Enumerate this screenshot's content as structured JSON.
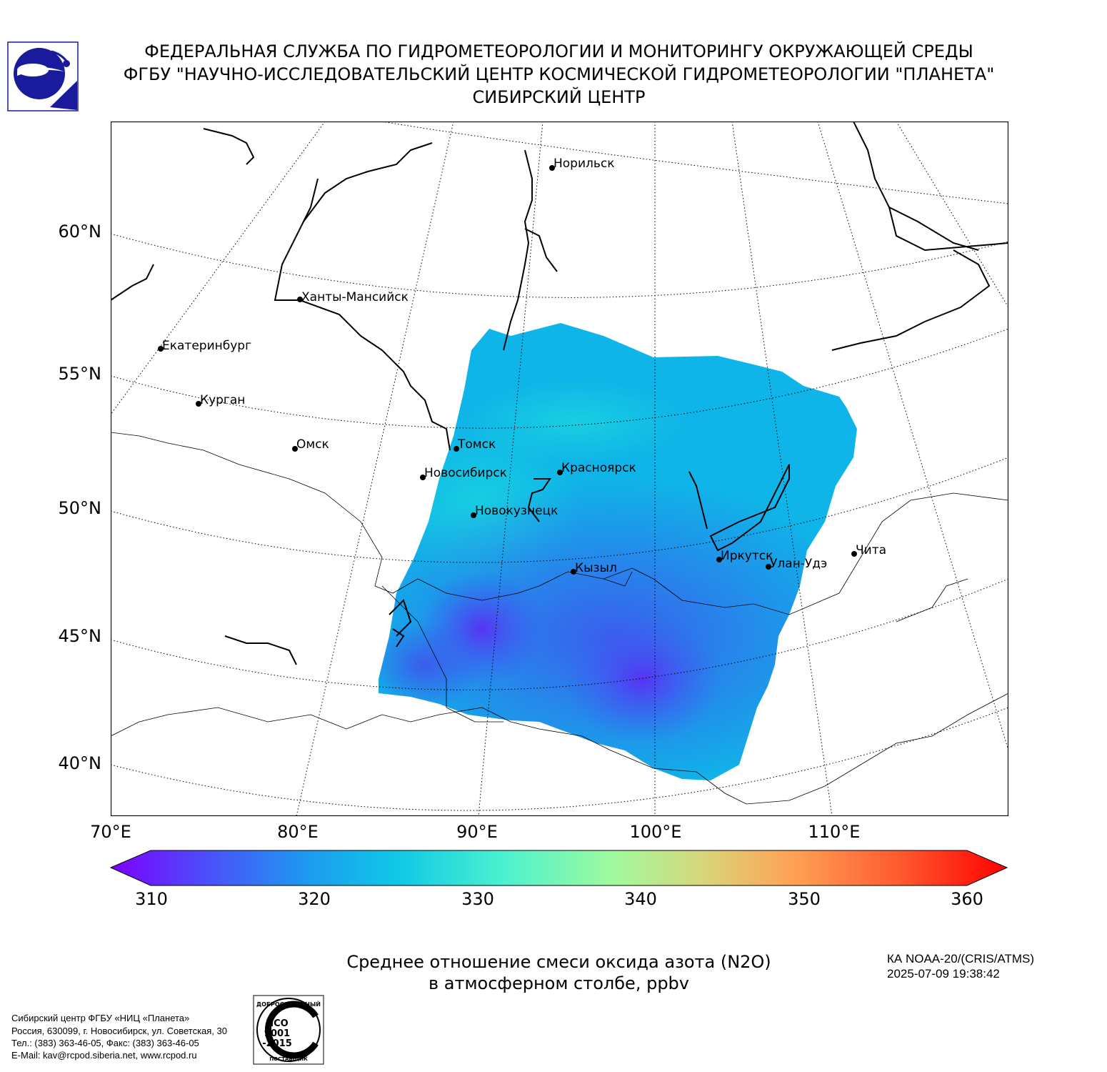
{
  "header": {
    "line1": "ФЕДЕРАЛЬНАЯ СЛУЖБА ПО ГИДРОМЕТЕОРОЛОГИИ И МОНИТОРИНГУ ОКРУЖАЮЩЕЙ СРЕДЫ",
    "line2": "ФГБУ \"НАУЧНО-ИССЛЕДОВАТЕЛЬСКИЙ ЦЕНТР КОСМИЧЕСКОЙ ГИДРОМЕТЕОРОЛОГИИ \"ПЛАНЕТА\"",
    "line3": "СИБИРСКИЙ ЦЕНТР"
  },
  "map": {
    "lat_labels": [
      "60°N",
      "55°N",
      "50°N",
      "45°N",
      "40°N"
    ],
    "lon_labels": [
      "70°E",
      "80°E",
      "90°E",
      "100°E",
      "110°E"
    ],
    "cities": [
      {
        "name": "Норильск"
      },
      {
        "name": "Ханты-Мансийск"
      },
      {
        "name": "Екатеринбург"
      },
      {
        "name": "Курган"
      },
      {
        "name": "Омск"
      },
      {
        "name": "Томск"
      },
      {
        "name": "Новосибирск"
      },
      {
        "name": "Красноярск"
      },
      {
        "name": "Новокузнецк"
      },
      {
        "name": "Кызыл"
      },
      {
        "name": "Иркутск"
      },
      {
        "name": "Улан-Удэ"
      },
      {
        "name": "Чита"
      }
    ]
  },
  "colorbar": {
    "min": 310,
    "max": 360,
    "ticks": [
      "310",
      "320",
      "330",
      "340",
      "350",
      "360"
    ]
  },
  "caption": {
    "line1": "Среднее отношение смеси оксида азота (N2O)",
    "line2": "в атмосферном столбе, ppbv"
  },
  "satellite": {
    "name": "КА NOAA-20/(CRIS/ATMS)",
    "datetime": "2025-07-09 19:38:42"
  },
  "organization": {
    "line1": "Сибирский центр ФГБУ «НИЦ «Планета»",
    "line2": "Россия, 630099, г. Новосибирск, ул. Советская, 30",
    "line3": "Тел.: (383) 363-46-05, Факс: (383) 363-46-05",
    "line4": "E-Mail: kav@rcpod.siberia.net, www.rcpod.ru"
  },
  "badge": {
    "top_text": "ДОБРОСОВЕСТНЫЙ",
    "bottom_text": "ПОСТАВЩИК",
    "iso_line1": "ИСО",
    "iso_line2": "9001",
    "iso_line3": "-2015"
  },
  "colors": {
    "logo_blue": "#1a1a9c",
    "grid": "#000000"
  }
}
